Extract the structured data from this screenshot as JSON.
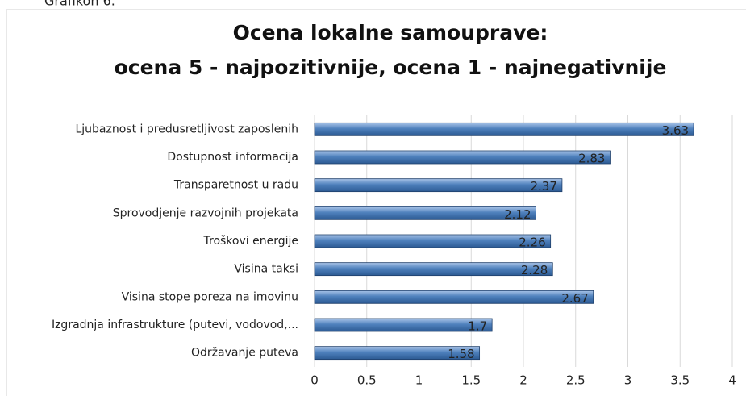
{
  "caption": "Grafikon 6.",
  "chart_data": {
    "type": "bar",
    "orientation": "horizontal",
    "title": [
      "Ocena lokalne samouprave:",
      "ocena 5 - najpozitivnije, ocena 1 - najnegativnije"
    ],
    "categories": [
      "Ljubaznost i predusretljivost zaposlenih",
      "Dostupnost informacija",
      "Transparetnost u radu",
      "Sprovodjenje razvojnih projekata",
      "Troškovi energije",
      "Visina taksi",
      "Visina stope poreza na imovinu",
      "Izgradnja infrastrukture (putevi, vodovod,...",
      "Održavanje puteva"
    ],
    "values": [
      3.63,
      2.83,
      2.37,
      2.12,
      2.26,
      2.28,
      2.67,
      1.7,
      1.58
    ],
    "color": "#4f81bd",
    "xlim": [
      0,
      4
    ],
    "xticks": [
      0,
      0.5,
      1,
      1.5,
      2,
      2.5,
      3,
      3.5,
      4
    ],
    "grid": true
  }
}
